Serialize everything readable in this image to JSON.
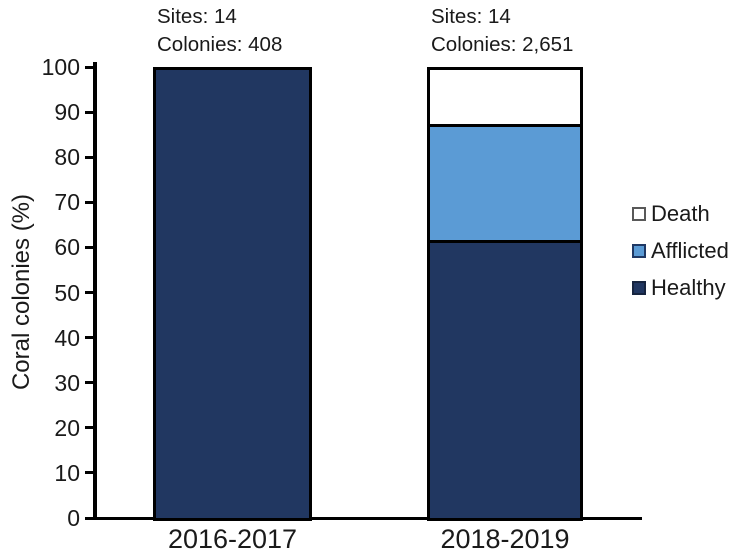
{
  "chart_data": {
    "type": "bar",
    "stacked": true,
    "orientation": "vertical",
    "title": "",
    "xlabel": "",
    "ylabel": "Coral colonies (%)",
    "ylim": [
      0,
      100
    ],
    "yticks": [
      0,
      10,
      20,
      30,
      40,
      50,
      60,
      70,
      80,
      90,
      100
    ],
    "grid": false,
    "categories": [
      "2016-2017",
      "2018-2019"
    ],
    "series": [
      {
        "name": "Healthy",
        "color": "#213761",
        "border": "#000000",
        "values": [
          100,
          62
        ]
      },
      {
        "name": "Afflicted",
        "color": "#5B9BD5",
        "border": "#000000",
        "values": [
          0,
          26
        ]
      },
      {
        "name": "Death",
        "color": "#FFFFFF",
        "border": "#000000",
        "values": [
          0,
          12
        ]
      }
    ],
    "legend_position": "right",
    "legend": [
      {
        "label": "Death",
        "fill": "#FFFFFF",
        "border": "#595959"
      },
      {
        "label": "Afflicted",
        "fill": "#5B9BD5",
        "border": "#1F3864"
      },
      {
        "label": "Healthy",
        "fill": "#213761",
        "border": "#16243F"
      }
    ],
    "annotations": [
      {
        "category": "2016-2017",
        "lines": [
          "Sites: 14",
          "Colonies: 408"
        ]
      },
      {
        "category": "2018-2019",
        "lines": [
          "Sites: 14",
          "Colonies: 2,651"
        ]
      }
    ]
  }
}
